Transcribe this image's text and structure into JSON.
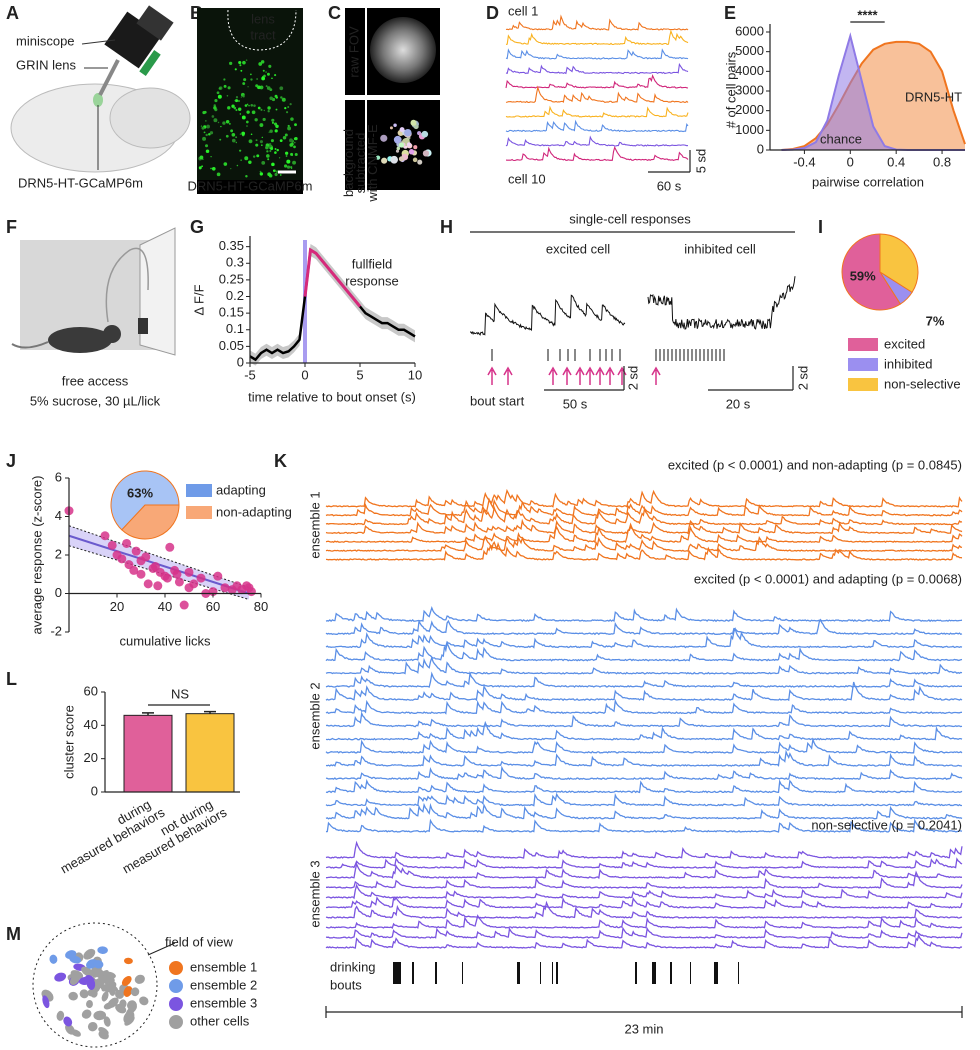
{
  "panels": {
    "A": {
      "label": "A",
      "texts": [
        "miniscope",
        "GRIN lens",
        "DRN5-HT-GCaMP6m"
      ]
    },
    "B": {
      "label": "B",
      "texts": [
        "lens",
        "tract",
        "DRN5-HT-GCaMP6m"
      ]
    },
    "C": {
      "label": "C",
      "raw": "raw FOV",
      "bg": [
        "background",
        "subtracted",
        "with CNMF-E"
      ]
    },
    "D": {
      "label": "D",
      "first": "cell 1",
      "last": "cell 10",
      "vscale": "5 sd",
      "hscale": "60 s"
    },
    "F": {
      "label": "F",
      "texts": [
        "free access",
        "5% sucrose, 30 µL/lick"
      ]
    },
    "H": {
      "label": "H",
      "title": "single-cell responses",
      "excited": "excited cell",
      "inhibited": "inhibited cell",
      "bout": "bout start",
      "vscale1": "2 sd",
      "hscale1": "50 s",
      "vscale2": "2 sd",
      "hscale2": "20 s"
    },
    "K": {
      "label": "K",
      "ensembles": [
        {
          "name": "ensemble 1",
          "note": "excited (p < 0.0001) and non-adapting (p = 0.0845)",
          "color": "#f0751f"
        },
        {
          "name": "ensemble 2",
          "note": "excited (p < 0.0001) and adapting (p = 0.0068)",
          "color": "#5b8fe6"
        },
        {
          "name": "ensemble 3",
          "note": "non-selective (p = 0.2041)",
          "color": "#7b55e0"
        }
      ],
      "bouts": [
        "drinking",
        "bouts"
      ],
      "scale": "23 min"
    },
    "M": {
      "label": "M",
      "title": "field of view",
      "legend": [
        "ensemble 1",
        "ensemble 2",
        "ensemble 3",
        "other cells"
      ],
      "colors": [
        "#f0751f",
        "#6f9be8",
        "#7b55e0",
        "#a0a0a0"
      ]
    }
  },
  "chart_data": [
    {
      "label": "E",
      "type": "area",
      "ylabel": "# of cell pairs",
      "xlabel": "pairwise correlation",
      "annotation": "****",
      "x": [
        -0.6,
        -0.5,
        -0.4,
        -0.3,
        -0.2,
        -0.1,
        0,
        0.1,
        0.2,
        0.3,
        0.4,
        0.5,
        0.6,
        0.7,
        0.8,
        0.9,
        1.0
      ],
      "series": [
        {
          "name": "DRN5-HT",
          "color": "#f0751f",
          "values": [
            0,
            50,
            200,
            600,
            1300,
            2300,
            3400,
            4400,
            5100,
            5400,
            5500,
            5500,
            5400,
            5000,
            4000,
            2000,
            300
          ]
        },
        {
          "name": "chance",
          "color": "#8f7ae6",
          "values": [
            0,
            20,
            100,
            400,
            1500,
            3800,
            5800,
            3500,
            1200,
            200,
            20,
            0,
            0,
            0,
            0,
            0,
            0
          ]
        }
      ],
      "xlim": [
        -0.7,
        1.0
      ],
      "ylim": [
        0,
        6000
      ],
      "xticks": [
        -0.4,
        0,
        0.4,
        0.8
      ],
      "yticks": [
        0,
        1000,
        2000,
        3000,
        4000,
        5000,
        6000
      ]
    },
    {
      "label": "G",
      "type": "line",
      "ylabel": "Δ F/F",
      "xlabel": "time relative to bout onset (s)",
      "annotation": [
        "fullfield",
        "response"
      ],
      "x": [
        -5,
        -4.5,
        -4,
        -3.5,
        -3,
        -2.5,
        -2,
        -1.5,
        -1,
        -0.5,
        0,
        0.5,
        1,
        1.5,
        2,
        2.5,
        3,
        3.5,
        4,
        4.5,
        5,
        5.5,
        6,
        6.5,
        7,
        7.5,
        8,
        8.5,
        9,
        9.5,
        10
      ],
      "values": [
        0.02,
        0.01,
        0.03,
        0.04,
        0.03,
        0.04,
        0.03,
        0.035,
        0.05,
        0.07,
        0.2,
        0.34,
        0.33,
        0.31,
        0.29,
        0.27,
        0.25,
        0.23,
        0.21,
        0.19,
        0.17,
        0.15,
        0.14,
        0.13,
        0.12,
        0.12,
        0.11,
        0.1,
        0.1,
        0.09,
        0.08
      ],
      "color": "#000000",
      "highlight_color": "#d62a7b",
      "xlim": [
        -5,
        10
      ],
      "ylim": [
        0,
        0.37
      ],
      "xticks": [
        -5,
        0,
        5,
        10
      ],
      "yticks": [
        0,
        0.05,
        0.1,
        0.15,
        0.2,
        0.25,
        0.3,
        0.35
      ]
    },
    {
      "label": "I",
      "type": "pie",
      "categories": [
        "excited",
        "inhibited",
        "non-selective"
      ],
      "values": [
        59,
        7,
        34
      ],
      "value_labels": [
        "59%",
        "7%",
        null
      ],
      "colors": [
        "#e0609a",
        "#9b8ff0",
        "#f9c440"
      ]
    },
    {
      "label": "J",
      "type": "scatter",
      "ylabel": "average response (z-score)",
      "xlabel": "cumulative licks",
      "x": [
        0,
        15,
        18,
        20,
        22,
        24,
        25,
        27,
        28,
        30,
        30,
        32,
        33,
        35,
        36,
        37,
        38,
        40,
        41,
        42,
        44,
        45,
        46,
        48,
        50,
        50,
        52,
        55,
        57,
        60,
        62,
        65,
        68,
        70,
        72,
        74,
        75,
        76
      ],
      "values": [
        4.3,
        3,
        2.5,
        2,
        1.8,
        2.6,
        1.5,
        1.2,
        2.2,
        1.7,
        1,
        1.9,
        0.5,
        1.3,
        1.4,
        0.4,
        1.1,
        0.9,
        0.8,
        2.4,
        1.2,
        1,
        0.6,
        -0.6,
        1.1,
        0.3,
        0.5,
        0.8,
        0,
        0.1,
        0.9,
        0.3,
        0.2,
        0.4,
        0.2,
        0.4,
        0.3,
        0.1
      ],
      "color": "#d6338a",
      "trend": {
        "x": [
          0,
          75
        ],
        "values": [
          3,
          0
        ]
      },
      "xlim": [
        0,
        80
      ],
      "ylim": [
        -2,
        6
      ],
      "xticks": [
        20,
        40,
        60,
        80
      ],
      "yticks": [
        -2,
        0,
        2,
        4,
        6
      ]
    },
    {
      "type": "pie",
      "categories": [
        "adapting",
        "non-adapting"
      ],
      "values": [
        63,
        37
      ],
      "value_labels": [
        "63%",
        null
      ],
      "colors": [
        "#a8c4f5",
        "#f8a877"
      ]
    },
    {
      "label": "L",
      "type": "bar",
      "ylabel": "cluster score",
      "categories": [
        [
          "during",
          "measured behaviors"
        ],
        [
          "not during",
          "measured behaviors"
        ]
      ],
      "values": [
        46,
        47
      ],
      "errors": [
        1.5,
        1.2
      ],
      "colors": [
        "#e0609a",
        "#f9c440"
      ],
      "annotation": "NS",
      "ylim": [
        0,
        60
      ],
      "yticks": [
        0,
        20,
        40,
        60
      ]
    }
  ]
}
